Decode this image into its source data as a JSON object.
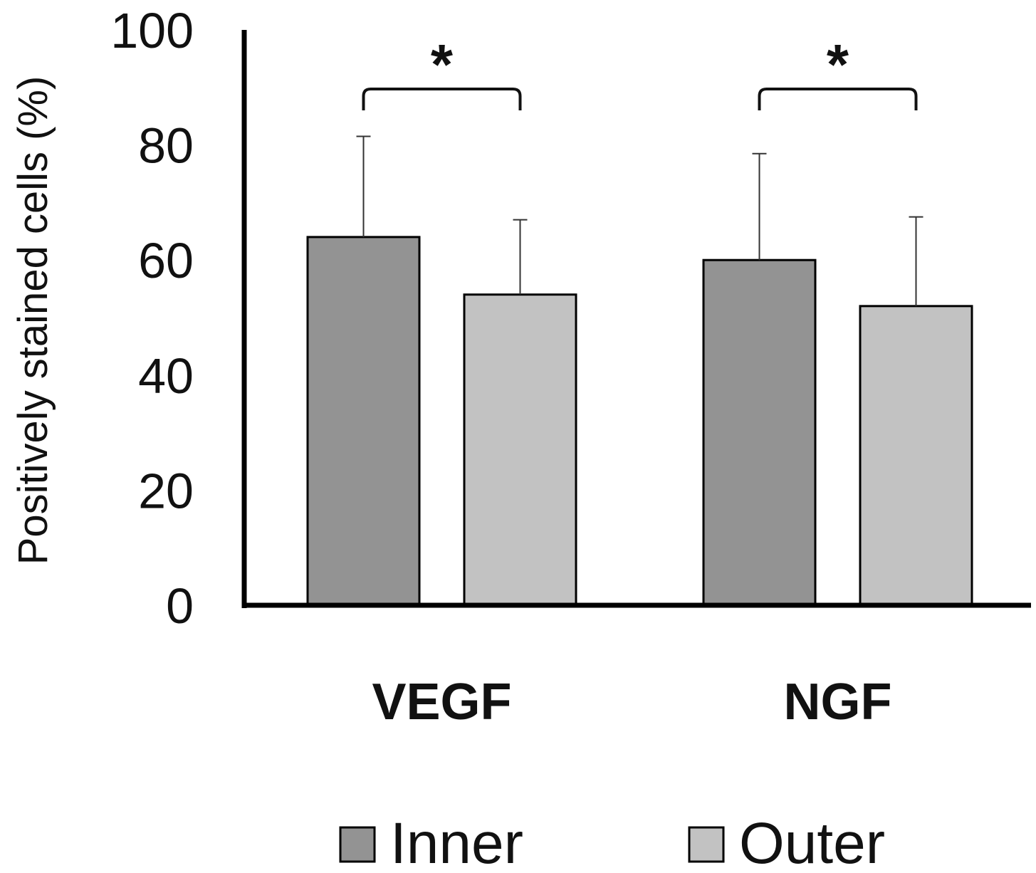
{
  "chart_data": {
    "type": "bar",
    "categories": [
      "VEGF",
      "NGF"
    ],
    "series": [
      {
        "name": "Inner",
        "values": [
          64,
          60
        ],
        "errors": [
          17.5,
          18.5
        ],
        "color": "#939393"
      },
      {
        "name": "Outer",
        "values": [
          54,
          52
        ],
        "errors": [
          13,
          15.5
        ],
        "color": "#c2c2c2"
      }
    ],
    "ylabel": "Positively stained cells (%)",
    "xlabel": "",
    "ylim": [
      0,
      100
    ],
    "yticks": [
      "0",
      "20",
      "40",
      "60",
      "80",
      "100"
    ],
    "significance": [
      {
        "category": "VEGF",
        "label": "*"
      },
      {
        "category": "NGF",
        "label": "*"
      }
    ],
    "legend": {
      "position": "bottom",
      "entries": [
        "Inner",
        "Outer"
      ]
    },
    "grid": false
  }
}
